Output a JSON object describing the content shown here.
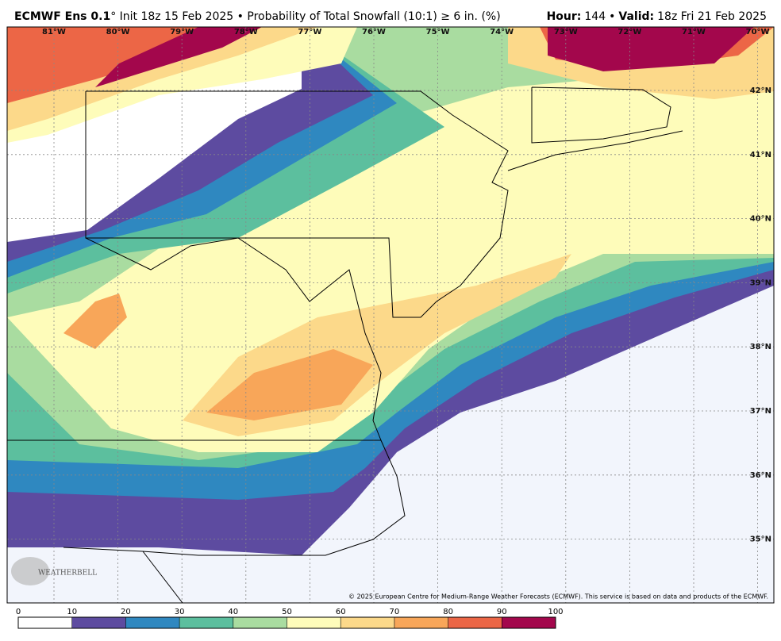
{
  "header": {
    "title_bold": "ECMWF Ens 0.1",
    "title_rest": "° Init 18z 15 Feb 2025 • Probability of Total Snowfall (10:1) ≥ 6 in. (%)",
    "hour_label": "Hour:",
    "hour": "144",
    "separator": "•",
    "valid_label": "Valid:",
    "valid": "18z Fri 21 Feb 2025"
  },
  "map": {
    "lon_labels": [
      "81°W",
      "80°W",
      "79°W",
      "78°W",
      "77°W",
      "76°W",
      "75°W",
      "74°W",
      "73°W",
      "72°W",
      "71°W",
      "70°W"
    ],
    "lat_labels": [
      "42°N",
      "41°N",
      "40°N",
      "39°N",
      "38°N",
      "37°N",
      "36°N",
      "35°N"
    ],
    "credit": "© 2025 European Centre for Medium-Range Weather Forecasts (ECMWF). This service is based on data and products of the ECMWF.",
    "logo": "WEATHERBELL"
  },
  "colorbar": {
    "ticks": [
      0,
      10,
      20,
      30,
      40,
      50,
      60,
      70,
      80,
      90,
      100
    ],
    "colors": [
      "#ffffff",
      "#5d4ba0",
      "#2f88c0",
      "#5cbf9e",
      "#a9dca0",
      "#fefcba",
      "#fcd98a",
      "#f8a659",
      "#ec6646",
      "#a3074c"
    ]
  }
}
